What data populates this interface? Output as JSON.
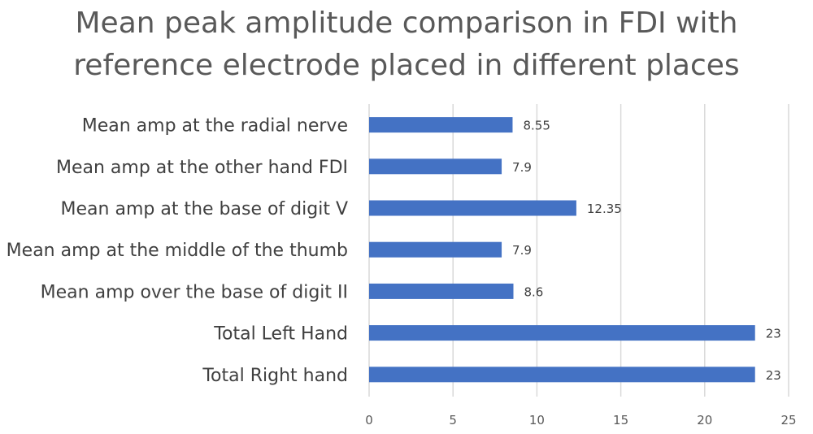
{
  "chart_data": {
    "type": "bar",
    "orientation": "horizontal",
    "title_lines": [
      "Mean peak amplitude comparison in FDI with",
      "reference electrode placed in different places"
    ],
    "categories": [
      "Mean amp at the radial nerve",
      "Mean amp at the other hand FDI",
      "Mean amp at the base of digit V",
      "Mean amp at the middle of the thumb",
      "Mean amp over the base of digit II",
      "Total Left Hand",
      "Total Right hand"
    ],
    "values": [
      8.55,
      7.9,
      12.35,
      7.9,
      8.6,
      23,
      23
    ],
    "data_labels": [
      "8.55",
      "7.9",
      "12.35",
      "7.9",
      "8.6",
      "23",
      "23"
    ],
    "xlim": [
      0,
      25
    ],
    "xticks": [
      0,
      5,
      10,
      15,
      20,
      25
    ],
    "grid": "vertical",
    "legend": "none",
    "bar_color": "#4472C4",
    "grid_color": "#D9D9D9",
    "text_color": "#595959"
  }
}
